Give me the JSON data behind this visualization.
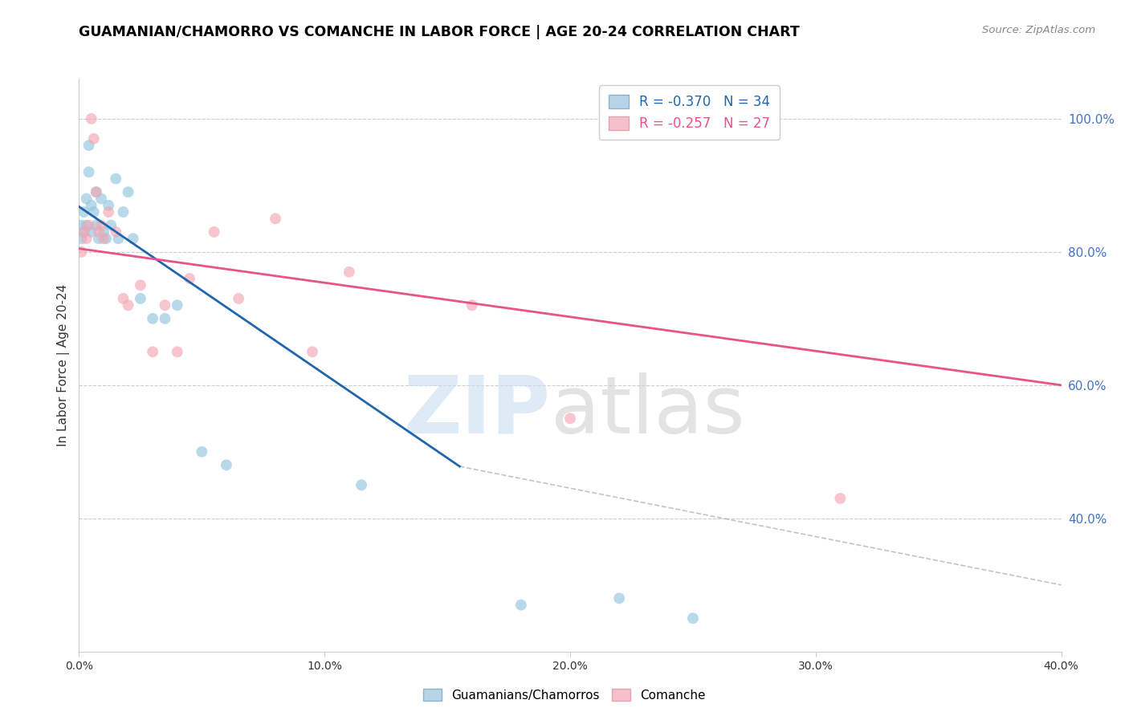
{
  "title": "GUAMANIAN/CHAMORRO VS COMANCHE IN LABOR FORCE | AGE 20-24 CORRELATION CHART",
  "source": "Source: ZipAtlas.com",
  "ylabel": "In Labor Force | Age 20-24",
  "xlim": [
    0.0,
    0.4
  ],
  "ylim": [
    0.2,
    1.06
  ],
  "xticks": [
    0.0,
    0.1,
    0.2,
    0.3,
    0.4
  ],
  "xtick_labels": [
    "0.0%",
    "10.0%",
    "20.0%",
    "30.0%",
    "40.0%"
  ],
  "yticks_right": [
    0.4,
    0.6,
    0.8,
    1.0
  ],
  "ytick_labels_right": [
    "40.0%",
    "60.0%",
    "80.0%",
    "100.0%"
  ],
  "legend_blue_label": "Guamanians/Chamorros",
  "legend_pink_label": "Comanche",
  "R_blue": -0.37,
  "N_blue": 34,
  "R_pink": -0.257,
  "N_pink": 27,
  "blue_color": "#92c5de",
  "pink_color": "#f4a6b2",
  "blue_line_color": "#2166ac",
  "pink_line_color": "#e8538a",
  "blue_scatter_x": [
    0.001,
    0.001,
    0.002,
    0.002,
    0.003,
    0.003,
    0.004,
    0.004,
    0.005,
    0.005,
    0.006,
    0.007,
    0.007,
    0.008,
    0.009,
    0.01,
    0.011,
    0.012,
    0.013,
    0.015,
    0.016,
    0.018,
    0.02,
    0.022,
    0.025,
    0.03,
    0.035,
    0.04,
    0.05,
    0.06,
    0.115,
    0.18,
    0.22,
    0.25
  ],
  "blue_scatter_y": [
    0.84,
    0.82,
    0.83,
    0.86,
    0.88,
    0.84,
    0.92,
    0.96,
    0.87,
    0.83,
    0.86,
    0.84,
    0.89,
    0.82,
    0.88,
    0.83,
    0.82,
    0.87,
    0.84,
    0.91,
    0.82,
    0.86,
    0.89,
    0.82,
    0.73,
    0.7,
    0.7,
    0.72,
    0.5,
    0.48,
    0.45,
    0.27,
    0.28,
    0.25
  ],
  "pink_scatter_x": [
    0.001,
    0.002,
    0.003,
    0.004,
    0.005,
    0.006,
    0.007,
    0.008,
    0.009,
    0.01,
    0.012,
    0.015,
    0.018,
    0.02,
    0.025,
    0.03,
    0.035,
    0.04,
    0.045,
    0.055,
    0.065,
    0.08,
    0.095,
    0.11,
    0.16,
    0.2,
    0.31
  ],
  "pink_scatter_y": [
    0.8,
    0.83,
    0.82,
    0.84,
    1.0,
    0.97,
    0.89,
    0.83,
    0.84,
    0.82,
    0.86,
    0.83,
    0.73,
    0.72,
    0.75,
    0.65,
    0.72,
    0.65,
    0.76,
    0.83,
    0.73,
    0.85,
    0.65,
    0.77,
    0.72,
    0.55,
    0.43
  ],
  "blue_line_x0": 0.0,
  "blue_line_y0": 0.868,
  "blue_line_x1": 0.155,
  "blue_line_y1": 0.478,
  "pink_line_x0": 0.0,
  "pink_line_y0": 0.805,
  "pink_line_x1": 0.4,
  "pink_line_y1": 0.6,
  "dashed_line_x0": 0.155,
  "dashed_line_y0": 0.478,
  "dashed_line_x1": 0.4,
  "dashed_line_y1": 0.3
}
